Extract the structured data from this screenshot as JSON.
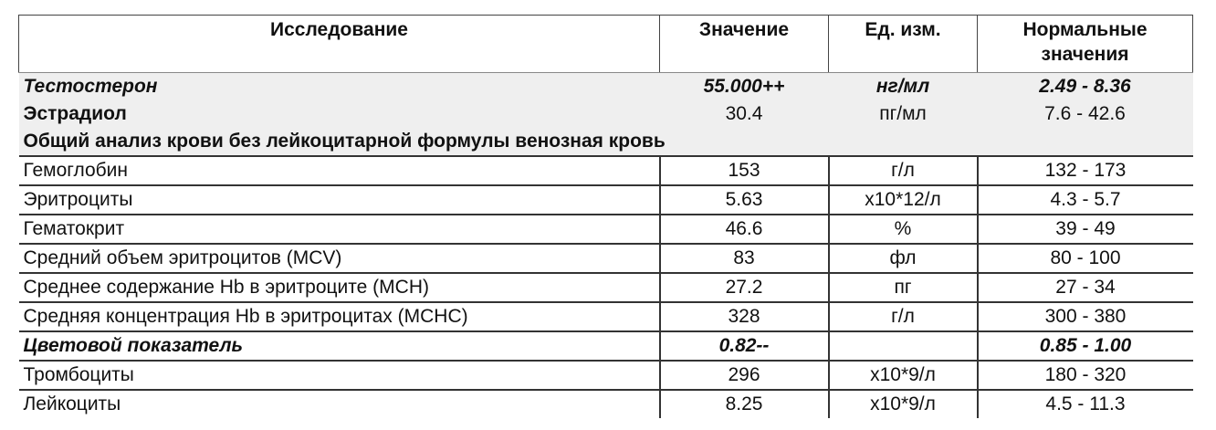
{
  "headers": [
    "Исследование",
    "Значение",
    "Ед. изм.",
    "Нормальные значения"
  ],
  "top_rows": [
    {
      "name": "Тестостерон",
      "value": "55.000++",
      "unit": "нг/мл",
      "range": "2.49 - 8.36"
    },
    {
      "name": "Эстрадиол",
      "value": "30.4",
      "unit": "пг/мл",
      "range": "7.6 - 42.6"
    }
  ],
  "section_title": "Общий анализ крови без лейкоцитарной формулы венозная кровь",
  "rows": [
    {
      "name": "Гемоглобин",
      "value": "153",
      "unit": "г/л",
      "range": "132 - 173"
    },
    {
      "name": "Эритроциты",
      "value": "5.63",
      "unit": "x10*12/л",
      "range": "4.3 - 5.7"
    },
    {
      "name": "Гематокрит",
      "value": "46.6",
      "unit": "%",
      "range": "39 - 49"
    },
    {
      "name": "Средний объем эритроцитов (MCV)",
      "value": "83",
      "unit": "фл",
      "range": "80 - 100"
    },
    {
      "name": "Среднее содержание Hb в эритроците (MCH)",
      "value": "27.2",
      "unit": "пг",
      "range": "27 - 34"
    },
    {
      "name": "Средняя концентрация Hb в эритроцитах (MCHC)",
      "value": "328",
      "unit": "г/л",
      "range": "300 - 380"
    },
    {
      "name": "Цветовой показатель",
      "value": "0.82--",
      "unit": "",
      "range": "0.85 - 1.00"
    },
    {
      "name": "Тромбоциты",
      "value": "296",
      "unit": "x10*9/л",
      "range": "180 - 320"
    },
    {
      "name": "Лейкоциты",
      "value": "8.25",
      "unit": "x10*9/л",
      "range": "4.5 - 11.3"
    }
  ]
}
